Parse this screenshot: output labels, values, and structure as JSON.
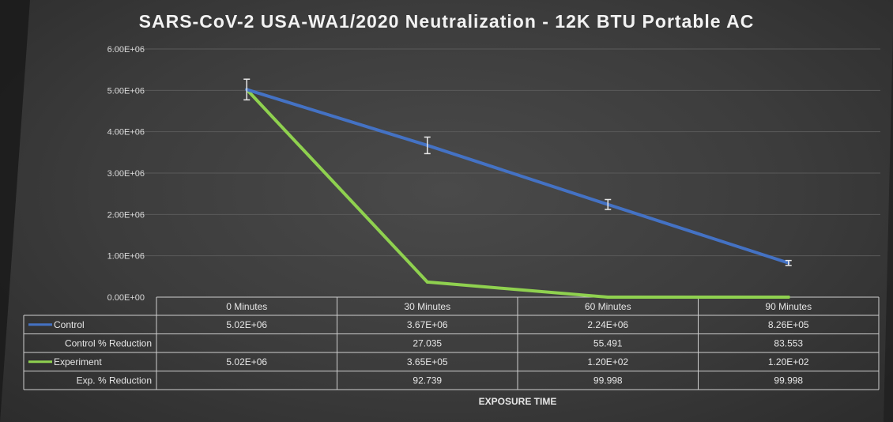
{
  "chart_data": {
    "type": "line",
    "title": "SARS-CoV-2 USA-WA1/2020 Neutralization - 12K BTU Portable AC",
    "xlabel": "EXPOSURE TIME",
    "ylabel": "",
    "categories": [
      "0 Minutes",
      "30 Minutes",
      "60 Minutes",
      "90 Minutes"
    ],
    "ylim": [
      0,
      6000000
    ],
    "y_ticks": [
      {
        "value": 0,
        "label": "0.00E+00"
      },
      {
        "value": 1000000,
        "label": "1.00E+06"
      },
      {
        "value": 2000000,
        "label": "2.00E+06"
      },
      {
        "value": 3000000,
        "label": "3.00E+06"
      },
      {
        "value": 4000000,
        "label": "4.00E+06"
      },
      {
        "value": 5000000,
        "label": "5.00E+06"
      },
      {
        "value": 6000000,
        "label": "6.00E+06"
      }
    ],
    "grid": true,
    "series": [
      {
        "name": "Control",
        "values": [
          5020000,
          3670000,
          2240000,
          826000
        ],
        "error": [
          250000,
          200000,
          120000,
          60000
        ],
        "color": "#4472c4"
      },
      {
        "name": "Experiment",
        "values": [
          5020000,
          365000,
          120,
          120
        ],
        "color": "#8fd14f"
      }
    ],
    "table": {
      "rows": [
        {
          "label": "Control",
          "legend_color": "#4472c4",
          "cells": [
            "5.02E+06",
            "3.67E+06",
            "2.24E+06",
            "8.26E+05"
          ]
        },
        {
          "label": "Control % Reduction",
          "legend_color": null,
          "cells": [
            "",
            "27.035",
            "55.491",
            "83.553"
          ]
        },
        {
          "label": "Experiment",
          "legend_color": "#8fd14f",
          "cells": [
            "5.02E+06",
            "3.65E+05",
            "1.20E+02",
            "1.20E+02"
          ]
        },
        {
          "label": "Exp. % Reduction",
          "legend_color": null,
          "cells": [
            "",
            "92.739",
            "99.998",
            "99.998"
          ]
        }
      ]
    }
  }
}
